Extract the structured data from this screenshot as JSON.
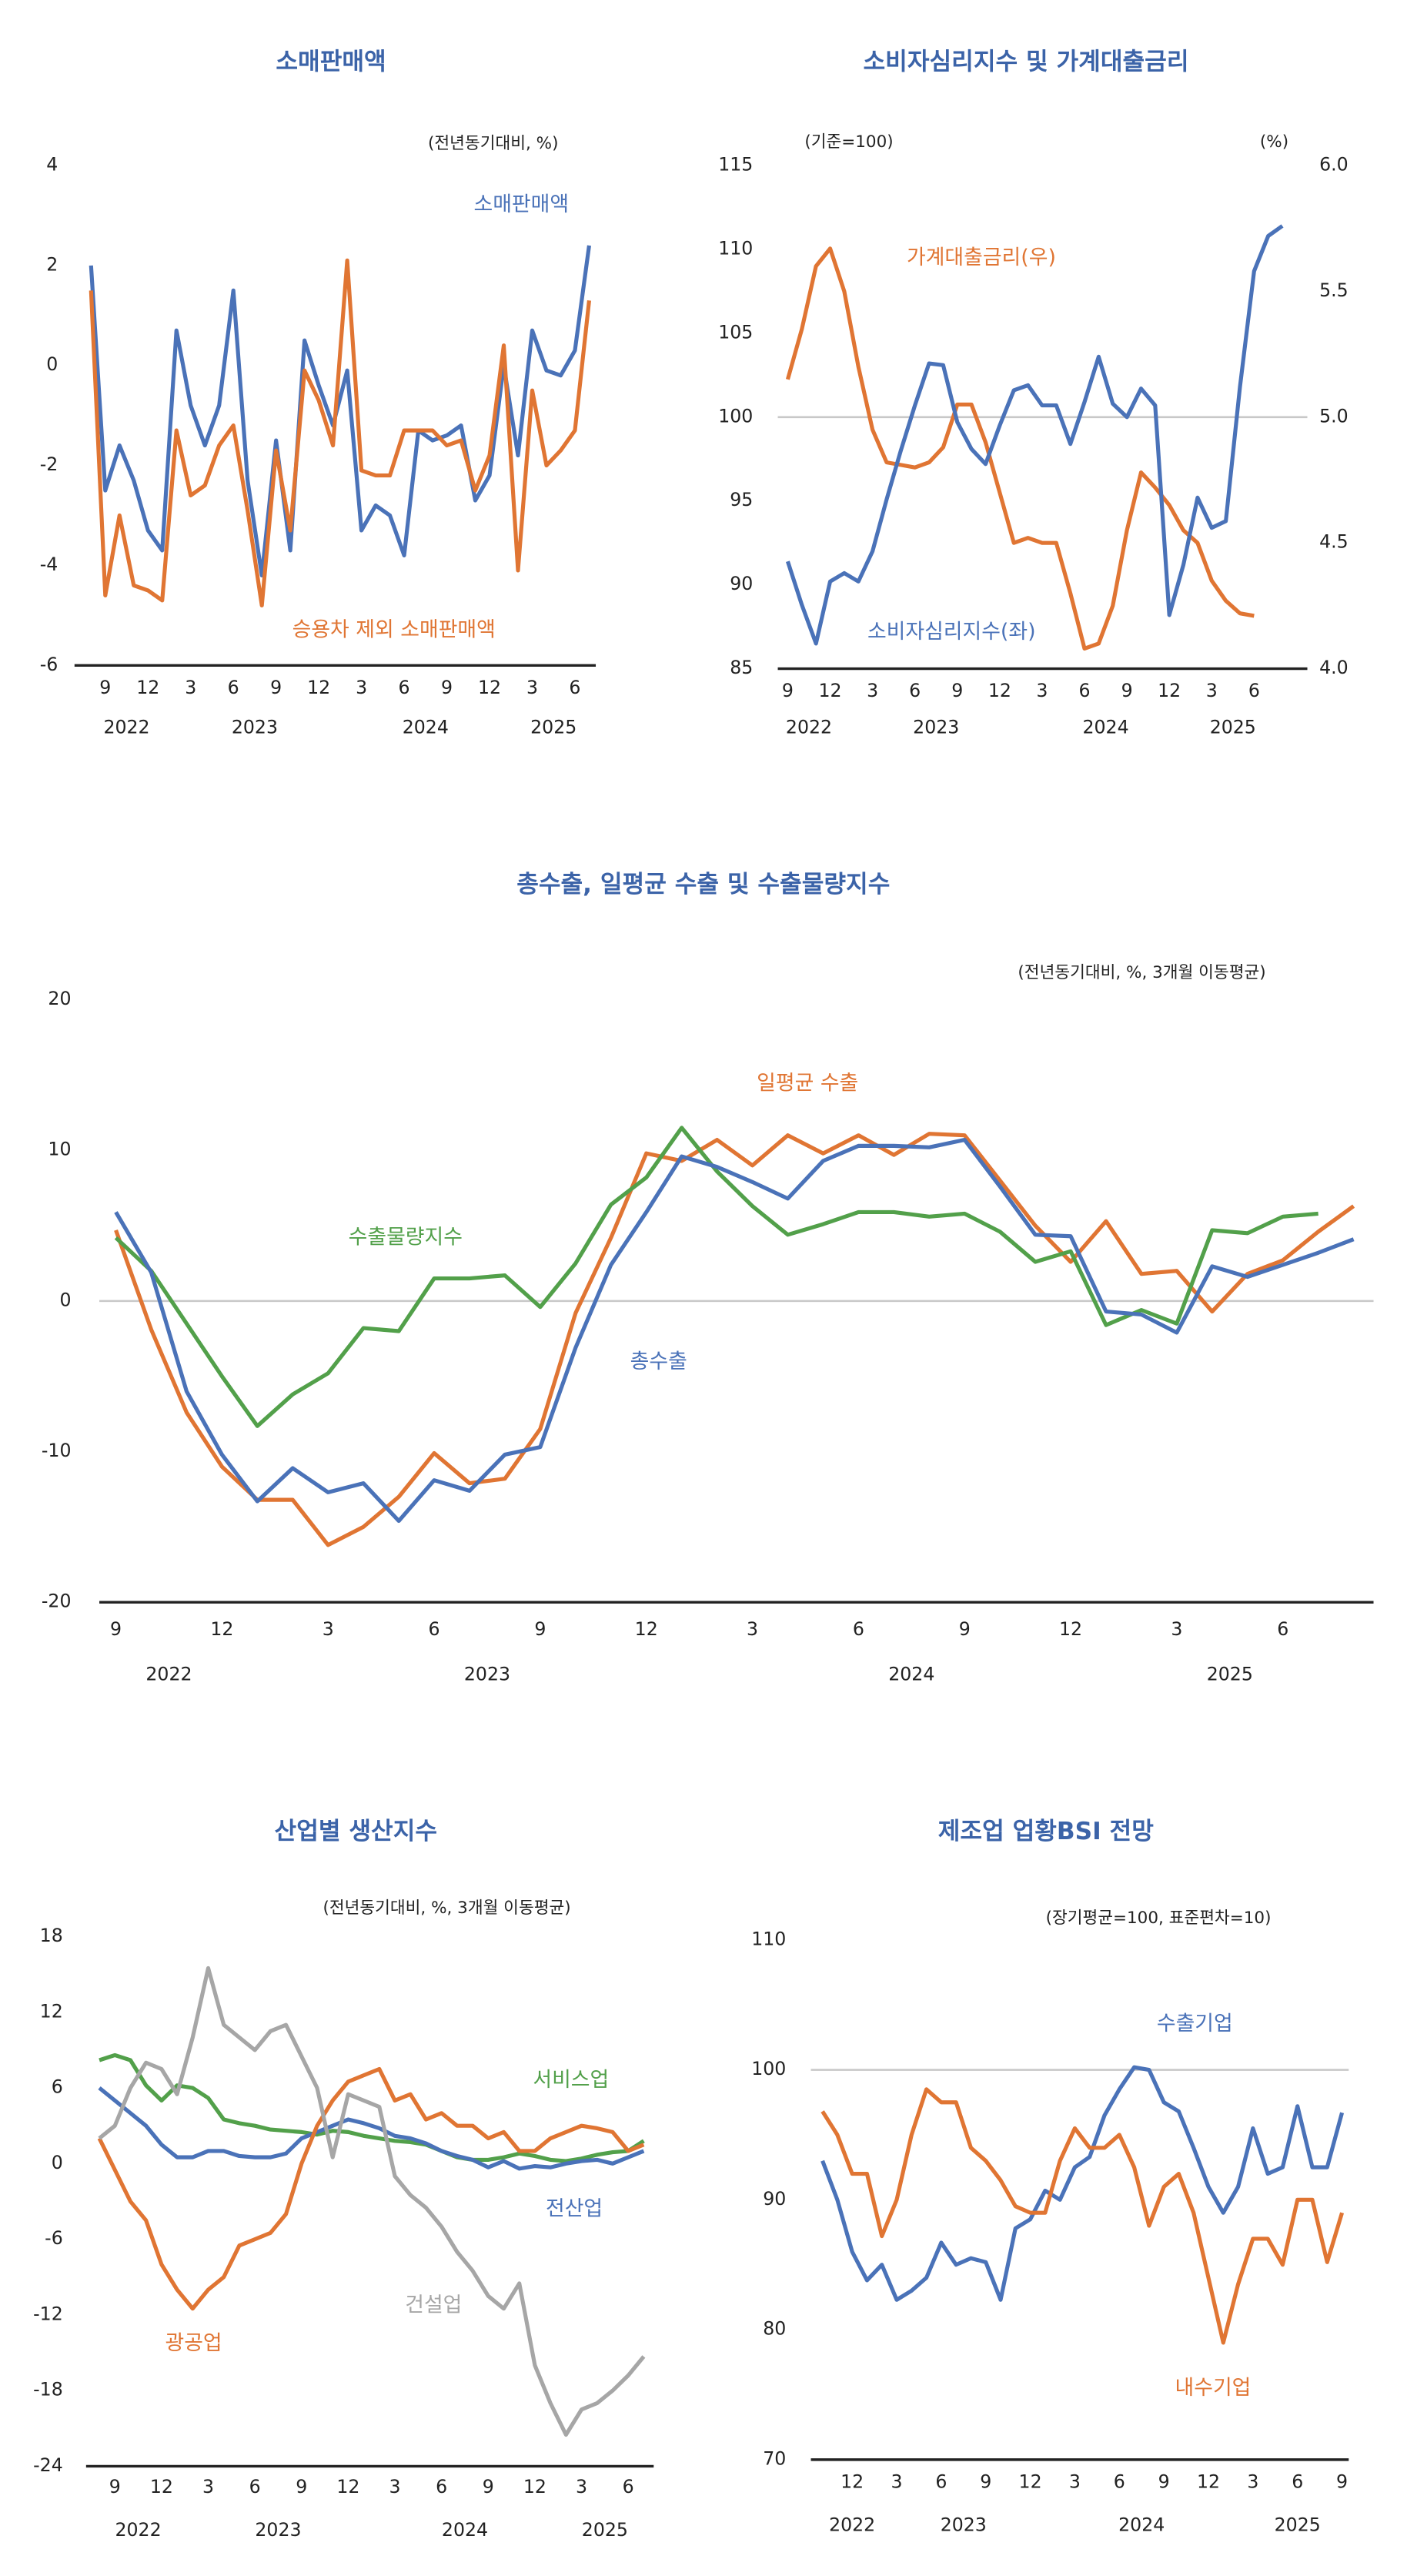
{
  "chart_data": [
    {
      "type": "line",
      "title": "소매판매액",
      "annotations": [
        "(전년동기대비, %)"
      ],
      "categories": [
        null,
        "9",
        null,
        null,
        "12",
        null,
        null,
        "3",
        null,
        null,
        "6",
        null,
        null,
        "9",
        null,
        null,
        "12",
        null,
        null,
        "3",
        null,
        null,
        "6",
        null,
        null,
        "9",
        null,
        null,
        "12",
        null,
        null,
        "3",
        null,
        null,
        "6",
        null
      ],
      "years": [
        {
          "label": "2022",
          "start": 0
        },
        {
          "label": "2023",
          "start": 5
        },
        {
          "label": "2024",
          "start": 17
        },
        {
          "label": "2025",
          "start": 29
        }
      ],
      "ylim": [
        -6,
        4
      ],
      "yticks": [
        -6,
        -4,
        -2,
        0,
        2,
        4
      ],
      "series": [
        {
          "name": "소매판매액",
          "color": "#4a72b8",
          "values": [
            2.0,
            -2.5,
            -1.6,
            -2.3,
            -3.3,
            -3.7,
            0.7,
            -0.8,
            -1.6,
            -0.8,
            1.5,
            -2.3,
            -4.2,
            -1.5,
            -3.7,
            0.5,
            -0.4,
            -1.2,
            -0.1,
            -3.3,
            -2.8,
            -3.0,
            -3.8,
            -1.3,
            -1.5,
            -1.4,
            -1.2,
            -2.7,
            -2.2,
            0.0,
            -1.8,
            0.7,
            -0.1,
            -0.2,
            0.3,
            2.4
          ]
        },
        {
          "name": "승용차 제외 소매판매액",
          "color": "#e07533",
          "values": [
            1.5,
            -4.6,
            -3.0,
            -4.4,
            -4.5,
            -4.7,
            -1.3,
            -2.6,
            -2.4,
            -1.6,
            -1.2,
            -2.9,
            -4.8,
            -1.7,
            -3.3,
            -0.1,
            -0.7,
            -1.6,
            2.1,
            -2.1,
            -2.2,
            -2.2,
            -1.3,
            -1.3,
            -1.3,
            -1.6,
            -1.5,
            -2.5,
            -1.8,
            0.4,
            -4.1,
            -0.5,
            -2.0,
            -1.7,
            -1.3,
            1.3
          ]
        }
      ]
    },
    {
      "type": "line",
      "title": "소비자심리지수 및 가계대출금리",
      "annotations": [
        "(기준=100)",
        "(%)"
      ],
      "categories": [
        "9",
        null,
        null,
        "12",
        null,
        null,
        "3",
        null,
        null,
        "6",
        null,
        null,
        "9",
        null,
        null,
        "12",
        null,
        null,
        "3",
        null,
        null,
        "6",
        null,
        null,
        "9",
        null,
        null,
        "12",
        null,
        null,
        "3",
        null,
        null,
        "6",
        null,
        null
      ],
      "years": [
        {
          "label": "2022",
          "start": 0
        },
        {
          "label": "2023",
          "start": 4
        },
        {
          "label": "2024",
          "start": 16
        },
        {
          "label": "2025",
          "start": 28
        }
      ],
      "ylim": [
        85,
        115
      ],
      "yticks": [
        85,
        90,
        95,
        100,
        105,
        110,
        115
      ],
      "y2lim": [
        4,
        6
      ],
      "y2ticks": [
        {
          "value": 4,
          "label": "4.0"
        },
        4.5,
        {
          "value": 5,
          "label": "5.0"
        },
        5.5,
        {
          "value": 6,
          "label": "6.0"
        }
      ],
      "hline": 100,
      "series": [
        {
          "name": "가계대출금리(우)",
          "color": "#e07533",
          "axis": "y2",
          "values": [
            5.15,
            5.35,
            5.6,
            5.67,
            5.5,
            5.2,
            4.95,
            4.82,
            4.81,
            4.8,
            4.82,
            4.88,
            5.05,
            5.05,
            4.9,
            4.7,
            4.5,
            4.52,
            4.5,
            4.5,
            4.3,
            4.08,
            4.1,
            4.25,
            4.55,
            4.78,
            4.72,
            4.65,
            4.55,
            4.5,
            4.35,
            4.27,
            4.22,
            4.21,
            null,
            null
          ]
        },
        {
          "name": "소비자심리지수(좌)",
          "color": "#4a72b8",
          "values": [
            91.4,
            88.8,
            86.5,
            90.2,
            90.7,
            90.2,
            92.0,
            95.1,
            98.0,
            100.7,
            103.2,
            103.1,
            99.7,
            98.1,
            97.2,
            99.5,
            101.6,
            101.9,
            100.7,
            100.7,
            98.4,
            100.9,
            103.6,
            100.8,
            100.0,
            101.7,
            100.7,
            88.2,
            91.2,
            95.2,
            93.4,
            93.8,
            101.8,
            108.7,
            110.8,
            111.4
          ]
        }
      ]
    },
    {
      "type": "line",
      "title": "총수출, 일평균 수출 및 수출물량지수",
      "annotations": [
        "(전년동기대비, %, 3개월 이동평균)"
      ],
      "categories": [
        "9",
        null,
        null,
        "12",
        null,
        null,
        "3",
        null,
        null,
        "6",
        null,
        null,
        "9",
        null,
        null,
        "12",
        null,
        null,
        "3",
        null,
        null,
        "6",
        null,
        null,
        "9",
        null,
        null,
        "12",
        null,
        null,
        "3",
        null,
        null,
        "6",
        null,
        null
      ],
      "years": [
        {
          "label": "2022",
          "start": 0
        },
        {
          "label": "2023",
          "start": 4
        },
        {
          "label": "2024",
          "start": 16
        },
        {
          "label": "2025",
          "start": 28
        }
      ],
      "ylim": [
        -20,
        20
      ],
      "yticks": [
        -20,
        -10,
        0,
        10,
        20
      ],
      "hline": 0,
      "series": [
        {
          "name": "일평균 수출",
          "color": "#e07533",
          "values": [
            4.7,
            -1.9,
            -7.4,
            -11,
            -13.2,
            -13.2,
            -16.2,
            -15,
            -13,
            -10.1,
            -12.1,
            -11.8,
            -8.5,
            -0.8,
            4.2,
            9.8,
            9.3,
            10.7,
            9,
            11,
            9.8,
            11,
            9.7,
            11.1,
            11,
            8,
            5,
            2.6,
            5.3,
            1.8,
            2,
            -0.7,
            1.8,
            2.7,
            4.6,
            6.3
          ]
        },
        {
          "name": "수출물량지수",
          "color": "#52a04a",
          "values": [
            4.2,
            2,
            -1.5,
            -5,
            -8.3,
            -6.2,
            -4.8,
            -1.8,
            -2,
            1.5,
            1.5,
            1.7,
            -0.4,
            2.5,
            6.4,
            8.2,
            11.5,
            8.6,
            6.3,
            4.4,
            5.1,
            5.9,
            5.9,
            5.6,
            5.8,
            4.6,
            2.6,
            3.3,
            -1.6,
            -0.6,
            -1.5,
            4.7,
            4.5,
            5.6,
            5.8,
            null
          ]
        },
        {
          "name": "총수출",
          "color": "#4a72b8",
          "values": [
            5.9,
            1.9,
            -6,
            -10.2,
            -13.3,
            -11.1,
            -12.7,
            -12.1,
            -14.6,
            -11.9,
            -12.6,
            -10.2,
            -9.7,
            -3.1,
            2.4,
            5.9,
            9.6,
            8.9,
            7.9,
            6.8,
            9.3,
            10.3,
            10.3,
            10.2,
            10.7,
            7.6,
            4.4,
            4.3,
            -0.7,
            -0.9,
            -2.1,
            2.3,
            1.6,
            2.4,
            3.2,
            4.1
          ]
        }
      ]
    },
    {
      "type": "line",
      "title": "산업별 생산지수",
      "annotations": [
        "(전년동기대비, %, 3개월 이동평균)"
      ],
      "categories": [
        null,
        "9",
        null,
        null,
        "12",
        null,
        null,
        "3",
        null,
        null,
        "6",
        null,
        null,
        "9",
        null,
        null,
        "12",
        null,
        null,
        "3",
        null,
        null,
        "6",
        null,
        null,
        "9",
        null,
        null,
        "12",
        null,
        null,
        "3",
        null,
        null,
        "6",
        null
      ],
      "years": [
        {
          "label": "2022",
          "start": 0
        },
        {
          "label": "2023",
          "start": 5
        },
        {
          "label": "2024",
          "start": 17
        },
        {
          "label": "2025",
          "start": 29
        }
      ],
      "ylim": [
        -24,
        18
      ],
      "yticks": [
        -24,
        -18,
        -12,
        -6,
        0,
        6,
        12,
        18
      ],
      "series": [
        {
          "name": "서비스업",
          "color": "#52a04a",
          "values": [
            8.2,
            8.6,
            8.2,
            6.2,
            5.0,
            6.2,
            6.0,
            5.2,
            3.5,
            3.2,
            3.0,
            2.7,
            2.6,
            2.5,
            2.3,
            2.6,
            2.5,
            2.2,
            2.0,
            1.8,
            1.7,
            1.5,
            1.0,
            0.5,
            0.3,
            0.3,
            0.5,
            0.8,
            0.6,
            0.3,
            0.2,
            0.4,
            0.7,
            0.9,
            1.0,
            1.8
          ]
        },
        {
          "name": "전산업",
          "color": "#4a72b8",
          "values": [
            6,
            5,
            4,
            3,
            1.5,
            0.5,
            0.5,
            1,
            1,
            0.6,
            0.5,
            0.5,
            0.8,
            2,
            2.5,
            3,
            3.5,
            3.2,
            2.8,
            2.2,
            2,
            1.6,
            1,
            0.6,
            0.3,
            -0.3,
            0.2,
            -0.4,
            -0.2,
            -0.3,
            0,
            0.2,
            0.3,
            0,
            0.5,
            1
          ]
        },
        {
          "name": "광공업",
          "color": "#e07533",
          "values": [
            2,
            -0.5,
            -3,
            -4.5,
            -8,
            -10,
            -11.5,
            -10,
            -9,
            -6.5,
            -6,
            -5.5,
            -4,
            0,
            3,
            5,
            6.5,
            7,
            7.5,
            5,
            5.5,
            3.5,
            4,
            3,
            3,
            2,
            2.5,
            1,
            1,
            2,
            2.5,
            3,
            2.8,
            2.5,
            1,
            1.5
          ]
        },
        {
          "name": "건설업",
          "color": "#a6a6a6",
          "values": [
            2,
            3,
            6,
            8,
            7.5,
            5.5,
            10,
            15.5,
            11,
            10,
            9,
            10.5,
            11,
            8.5,
            6,
            0.5,
            5.5,
            5,
            4.5,
            -1,
            -2.5,
            -3.5,
            -5,
            -7,
            -8.5,
            -10.5,
            -11.5,
            -9.5,
            -16,
            -19,
            -21.5,
            -19.5,
            -19,
            -18,
            -16.8,
            -15.3
          ]
        }
      ]
    },
    {
      "type": "line",
      "title": "제조업 업황BSI 전망",
      "annotations": [
        "(장기평균=100, 표준편차=10)"
      ],
      "categories": [
        null,
        null,
        "12",
        null,
        null,
        "3",
        null,
        null,
        "6",
        null,
        null,
        "9",
        null,
        null,
        "12",
        null,
        null,
        "3",
        null,
        null,
        "6",
        null,
        null,
        "9",
        null,
        null,
        "12",
        null,
        null,
        "3",
        null,
        null,
        "6",
        null,
        null,
        "9"
      ],
      "years": [
        {
          "label": "2022",
          "start": 0
        },
        {
          "label": "2023",
          "start": 3
        },
        {
          "label": "2024",
          "start": 15
        },
        {
          "label": "2025",
          "start": 27
        }
      ],
      "ylim": [
        70,
        110
      ],
      "yticks": [
        70,
        80,
        90,
        100,
        110
      ],
      "hline": 100,
      "series": [
        {
          "name": "수출기업",
          "color": "#4a72b8",
          "values": [
            93,
            90,
            86,
            83.8,
            85,
            82.3,
            83,
            84,
            86.7,
            85,
            85.5,
            85.2,
            82.3,
            87.8,
            88.5,
            90.7,
            90,
            92.5,
            93.3,
            96.5,
            98.5,
            100.2,
            100,
            97.5,
            96.8,
            94,
            91,
            89,
            91,
            95.5,
            92,
            92.5,
            97.2,
            92.5,
            92.5,
            96.7
          ]
        },
        {
          "name": "내수기업",
          "color": "#e07533",
          "values": [
            96.8,
            95,
            92,
            92,
            87.2,
            90,
            95,
            98.5,
            97.5,
            97.5,
            94,
            93,
            91.5,
            89.5,
            89,
            89,
            93,
            95.5,
            94,
            94,
            95,
            92.5,
            88,
            91,
            92,
            89,
            84,
            79,
            83.5,
            87,
            87,
            85,
            90,
            90,
            85.2,
            89
          ]
        }
      ]
    }
  ]
}
